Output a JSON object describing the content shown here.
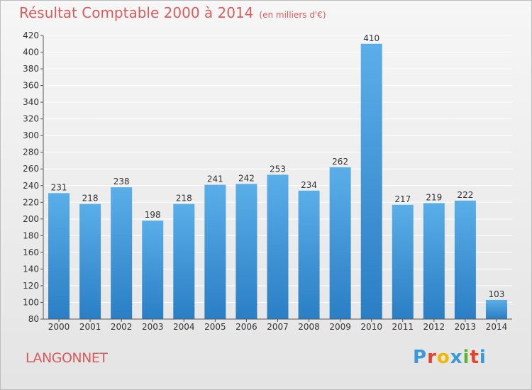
{
  "header": {
    "title": "Résultat Comptable 2000 à 2014",
    "subtitle": "(en milliers d'€)"
  },
  "footer": {
    "place": "LANGONNET",
    "brand": "Proxiti",
    "brand_colors": [
      "#3a9ad9",
      "#e8412c",
      "#f2b705",
      "#3a9ad9",
      "#5bb531",
      "#e8412c",
      "#3a9ad9"
    ]
  },
  "colors": {
    "title": "#d95c5c",
    "bar_top": "#5aaee8",
    "bar_bottom": "#2a7ec4",
    "grid": "#ffffff",
    "axis": "#555555"
  },
  "chart_data": {
    "type": "bar",
    "categories": [
      "2000",
      "2001",
      "2002",
      "2003",
      "2004",
      "2005",
      "2006",
      "2007",
      "2008",
      "2009",
      "2010",
      "2011",
      "2012",
      "2013",
      "2014"
    ],
    "values": [
      231,
      218,
      238,
      198,
      218,
      241,
      242,
      253,
      234,
      262,
      410,
      217,
      219,
      222,
      103
    ],
    "ylim": [
      80,
      420
    ],
    "ytick_step": 20,
    "grid": true,
    "legend": "none"
  }
}
